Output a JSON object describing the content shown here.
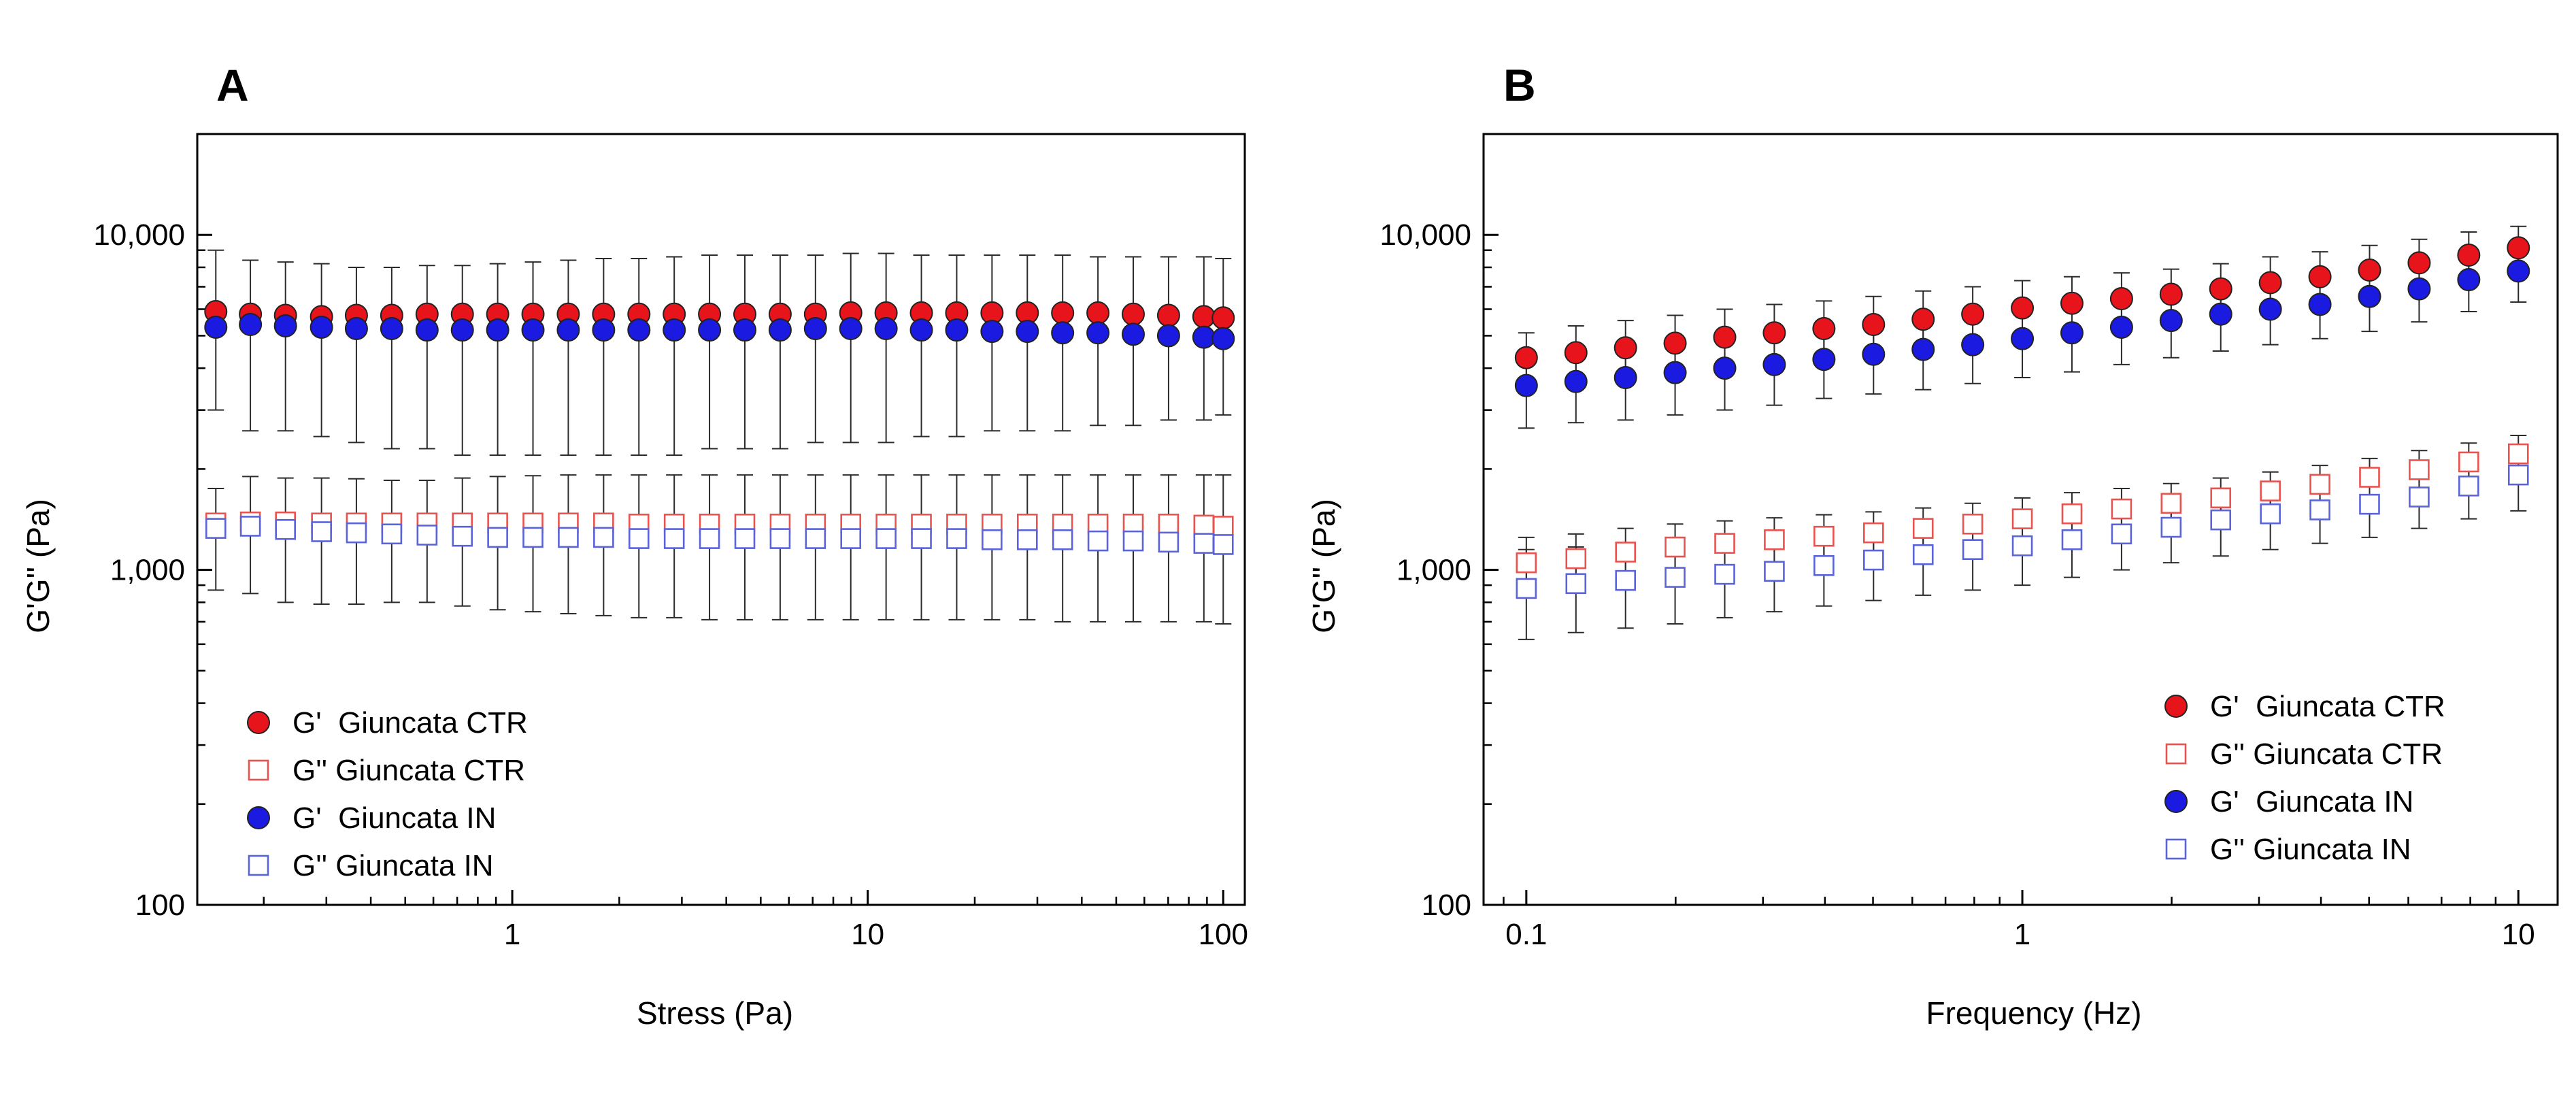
{
  "figure": {
    "colors": {
      "ctr_fill": "#e8141c",
      "ctr_open": "#e8534f",
      "in_fill": "#1a1ae0",
      "in_open": "#5a64d8",
      "errorbar": "#2b2b2b",
      "axis": "#000000"
    }
  },
  "chart_data": [
    {
      "panel": "A",
      "type": "scatter",
      "xscale": "log",
      "yscale": "log",
      "xlabel": "Stress (Pa)",
      "ylabel": "G'G'' (Pa)",
      "xlim": [
        0.13,
        115
      ],
      "ylim": [
        100,
        20000
      ],
      "xticks": [
        1,
        10,
        100
      ],
      "xtick_labels": [
        "1",
        "10",
        "100"
      ],
      "yticks": [
        100,
        1000,
        10000
      ],
      "ytick_labels": [
        "100",
        "1,000",
        "10,000"
      ],
      "legend_position": "bottom-left",
      "series": [
        {
          "name": "G'  Giuncata CTR",
          "marker": "filled",
          "color_key": "ctr_fill",
          "x": [
            0.1466,
            0.1834,
            0.2302,
            0.2907,
            0.3644,
            0.4581,
            0.5759,
            0.7239,
            0.9099,
            1.1437,
            1.4376,
            1.8071,
            2.2715,
            2.8552,
            3.5889,
            4.5112,
            5.6705,
            7.1277,
            8.9593,
            11.2617,
            14.1556,
            17.7933,
            22.3658,
            28.1134,
            35.3379,
            44.4189,
            55.8335,
            70.1815,
            88.2166,
            100.0
          ],
          "y": [
            5900,
            5800,
            5750,
            5700,
            5750,
            5750,
            5800,
            5800,
            5800,
            5800,
            5800,
            5800,
            5800,
            5800,
            5800,
            5800,
            5800,
            5800,
            5850,
            5850,
            5850,
            5850,
            5850,
            5850,
            5850,
            5850,
            5800,
            5750,
            5700,
            5650
          ],
          "err_lo": [
            3000,
            2600,
            2600,
            2500,
            2400,
            2300,
            2300,
            2200,
            2200,
            2200,
            2200,
            2200,
            2200,
            2200,
            2300,
            2300,
            2300,
            2400,
            2400,
            2400,
            2500,
            2500,
            2600,
            2600,
            2600,
            2700,
            2700,
            2800,
            2800,
            2900
          ],
          "err_hi": [
            9000,
            8400,
            8300,
            8200,
            8000,
            8000,
            8100,
            8100,
            8200,
            8300,
            8400,
            8500,
            8500,
            8600,
            8700,
            8700,
            8700,
            8700,
            8800,
            8800,
            8700,
            8700,
            8700,
            8700,
            8700,
            8600,
            8600,
            8600,
            8600,
            8500
          ]
        },
        {
          "name": "G'' Giuncata CTR",
          "marker": "open",
          "color_key": "ctr_open",
          "x": [
            0.1466,
            0.1834,
            0.2302,
            0.2907,
            0.3644,
            0.4581,
            0.5759,
            0.7239,
            0.9099,
            1.1437,
            1.4376,
            1.8071,
            2.2715,
            2.8552,
            3.5889,
            4.5112,
            5.6705,
            7.1277,
            8.9593,
            11.2617,
            14.1556,
            17.7933,
            22.3658,
            28.1134,
            35.3379,
            44.4189,
            55.8335,
            70.1815,
            88.2166,
            100.0
          ],
          "y": [
            1380,
            1390,
            1390,
            1380,
            1380,
            1380,
            1380,
            1380,
            1380,
            1380,
            1380,
            1380,
            1370,
            1370,
            1370,
            1370,
            1370,
            1370,
            1370,
            1370,
            1370,
            1370,
            1370,
            1370,
            1370,
            1370,
            1370,
            1370,
            1360,
            1350
          ],
          "err_lo": [],
          "err_hi": []
        },
        {
          "name": "G'  Giuncata IN",
          "marker": "filled",
          "color_key": "in_fill",
          "x": [
            0.1466,
            0.1834,
            0.2302,
            0.2907,
            0.3644,
            0.4581,
            0.5759,
            0.7239,
            0.9099,
            1.1437,
            1.4376,
            1.8071,
            2.2715,
            2.8552,
            3.5889,
            4.5112,
            5.6705,
            7.1277,
            8.9593,
            11.2617,
            14.1556,
            17.7933,
            22.3658,
            28.1134,
            35.3379,
            44.4189,
            55.8335,
            70.1815,
            88.2166,
            100.0
          ],
          "y": [
            5300,
            5400,
            5350,
            5300,
            5250,
            5250,
            5200,
            5200,
            5200,
            5200,
            5200,
            5200,
            5200,
            5200,
            5200,
            5200,
            5200,
            5250,
            5250,
            5250,
            5200,
            5200,
            5150,
            5150,
            5100,
            5100,
            5050,
            5000,
            4950,
            4900
          ],
          "err_lo": [],
          "err_hi": []
        },
        {
          "name": "G'' Giuncata IN",
          "marker": "open",
          "color_key": "in_open",
          "x": [
            0.1466,
            0.1834,
            0.2302,
            0.2907,
            0.3644,
            0.4581,
            0.5759,
            0.7239,
            0.9099,
            1.1437,
            1.4376,
            1.8071,
            2.2715,
            2.8552,
            3.5889,
            4.5112,
            5.6705,
            7.1277,
            8.9593,
            11.2617,
            14.1556,
            17.7933,
            22.3658,
            28.1134,
            35.3379,
            44.4189,
            55.8335,
            70.1815,
            88.2166,
            100.0
          ],
          "y": [
            1330,
            1350,
            1320,
            1300,
            1290,
            1280,
            1270,
            1260,
            1250,
            1250,
            1250,
            1250,
            1240,
            1240,
            1240,
            1240,
            1240,
            1240,
            1240,
            1240,
            1240,
            1240,
            1230,
            1230,
            1230,
            1220,
            1220,
            1210,
            1200,
            1190
          ],
          "err_lo": [
            870,
            850,
            800,
            790,
            790,
            800,
            800,
            780,
            760,
            750,
            740,
            730,
            720,
            720,
            710,
            710,
            710,
            710,
            710,
            710,
            710,
            710,
            710,
            710,
            700,
            700,
            700,
            700,
            700,
            690
          ],
          "err_hi": [
            1750,
            1900,
            1880,
            1880,
            1870,
            1850,
            1850,
            1880,
            1900,
            1910,
            1920,
            1920,
            1920,
            1920,
            1920,
            1920,
            1920,
            1920,
            1920,
            1920,
            1920,
            1920,
            1920,
            1920,
            1920,
            1920,
            1920,
            1920,
            1920,
            1920
          ]
        }
      ]
    },
    {
      "panel": "B",
      "type": "scatter",
      "xscale": "log",
      "yscale": "log",
      "xlabel": "Frequency (Hz)",
      "ylabel": "G'G'' (Pa)",
      "xlim": [
        0.082,
        12
      ],
      "ylim": [
        100,
        20000
      ],
      "xticks": [
        0.1,
        1,
        10
      ],
      "xtick_labels": [
        "0.1",
        "1",
        "10"
      ],
      "yticks": [
        100,
        1000,
        10000
      ],
      "ytick_labels": [
        "100",
        "1,000",
        "10,000"
      ],
      "legend_position": "bottom-right",
      "series": [
        {
          "name": "G'  Giuncata CTR",
          "marker": "filled",
          "color_key": "ctr_fill",
          "x": [
            0.1,
            0.1259,
            0.1585,
            0.1995,
            0.2512,
            0.3162,
            0.3981,
            0.5012,
            0.631,
            0.7943,
            1.0,
            1.2589,
            1.5849,
            1.9953,
            2.5119,
            3.1623,
            3.9811,
            5.0119,
            6.3096,
            7.9433,
            10.0
          ],
          "y": [
            4300,
            4450,
            4600,
            4750,
            4950,
            5100,
            5250,
            5400,
            5600,
            5800,
            6050,
            6250,
            6450,
            6650,
            6900,
            7200,
            7500,
            7850,
            8250,
            8700,
            9150
          ],
          "err_lo": [
            3500,
            3550,
            3650,
            3750,
            3900,
            4000,
            4150,
            4250,
            4400,
            4600,
            4800,
            5000,
            5200,
            5400,
            5600,
            5800,
            6100,
            6400,
            6800,
            7200,
            7700
          ],
          "err_hi": [
            5100,
            5350,
            5550,
            5750,
            6000,
            6200,
            6350,
            6550,
            6800,
            7000,
            7300,
            7500,
            7700,
            7900,
            8200,
            8600,
            8900,
            9300,
            9700,
            10200,
            10600
          ]
        },
        {
          "name": "G'' Giuncata CTR",
          "marker": "open",
          "color_key": "ctr_open",
          "x": [
            0.1,
            0.1259,
            0.1585,
            0.1995,
            0.2512,
            0.3162,
            0.3981,
            0.5012,
            0.631,
            0.7943,
            1.0,
            1.2589,
            1.5849,
            1.9953,
            2.5119,
            3.1623,
            3.9811,
            5.0119,
            6.3096,
            7.9433,
            10.0
          ],
          "y": [
            1050,
            1080,
            1130,
            1170,
            1200,
            1230,
            1260,
            1290,
            1330,
            1370,
            1420,
            1470,
            1520,
            1580,
            1640,
            1720,
            1800,
            1890,
            1990,
            2100,
            2220
          ],
          "err_lo": [
            880,
            900,
            940,
            970,
            1000,
            1030,
            1060,
            1090,
            1120,
            1160,
            1200,
            1250,
            1300,
            1350,
            1410,
            1480,
            1550,
            1630,
            1720,
            1820,
            1940
          ],
          "err_hi": [
            1250,
            1280,
            1330,
            1370,
            1400,
            1430,
            1460,
            1490,
            1530,
            1580,
            1640,
            1700,
            1750,
            1810,
            1880,
            1960,
            2050,
            2150,
            2270,
            2390,
            2520
          ]
        },
        {
          "name": "G'  Giuncata IN",
          "marker": "filled",
          "color_key": "in_fill",
          "x": [
            0.1,
            0.1259,
            0.1585,
            0.1995,
            0.2512,
            0.3162,
            0.3981,
            0.5012,
            0.631,
            0.7943,
            1.0,
            1.2589,
            1.5849,
            1.9953,
            2.5119,
            3.1623,
            3.9811,
            5.0119,
            6.3096,
            7.9433,
            10.0
          ],
          "y": [
            3550,
            3650,
            3750,
            3880,
            4000,
            4100,
            4250,
            4400,
            4550,
            4700,
            4900,
            5100,
            5300,
            5550,
            5800,
            6000,
            6200,
            6550,
            6900,
            7350,
            7800
          ],
          "err_lo": [
            2650,
            2750,
            2800,
            2900,
            3000,
            3100,
            3250,
            3350,
            3450,
            3600,
            3750,
            3900,
            4100,
            4300,
            4500,
            4700,
            4900,
            5150,
            5500,
            5900,
            6300
          ],
          "err_hi": [
            4500,
            4600,
            4750,
            4900,
            5050,
            5150,
            5300,
            5450,
            5650,
            5850,
            6050,
            6300,
            6550,
            6850,
            7100,
            7350,
            7650,
            8000,
            8350,
            8800,
            9200
          ]
        },
        {
          "name": "G'' Giuncata IN",
          "marker": "open",
          "color_key": "in_open",
          "x": [
            0.1,
            0.1259,
            0.1585,
            0.1995,
            0.2512,
            0.3162,
            0.3981,
            0.5012,
            0.631,
            0.7943,
            1.0,
            1.2589,
            1.5849,
            1.9953,
            2.5119,
            3.1623,
            3.9811,
            5.0119,
            6.3096,
            7.9433,
            10.0
          ],
          "y": [
            880,
            910,
            930,
            950,
            970,
            990,
            1030,
            1070,
            1110,
            1150,
            1180,
            1230,
            1280,
            1340,
            1410,
            1470,
            1510,
            1570,
            1650,
            1780,
            1920
          ],
          "err_lo": [
            620,
            650,
            670,
            690,
            720,
            750,
            780,
            810,
            840,
            870,
            900,
            950,
            1000,
            1050,
            1100,
            1150,
            1200,
            1250,
            1330,
            1420,
            1500
          ],
          "err_hi": [
            1150,
            1170,
            1190,
            1210,
            1240,
            1260,
            1300,
            1340,
            1380,
            1430,
            1470,
            1520,
            1570,
            1630,
            1700,
            1760,
            1820,
            1900,
            2000,
            2150,
            2300
          ]
        }
      ]
    }
  ]
}
